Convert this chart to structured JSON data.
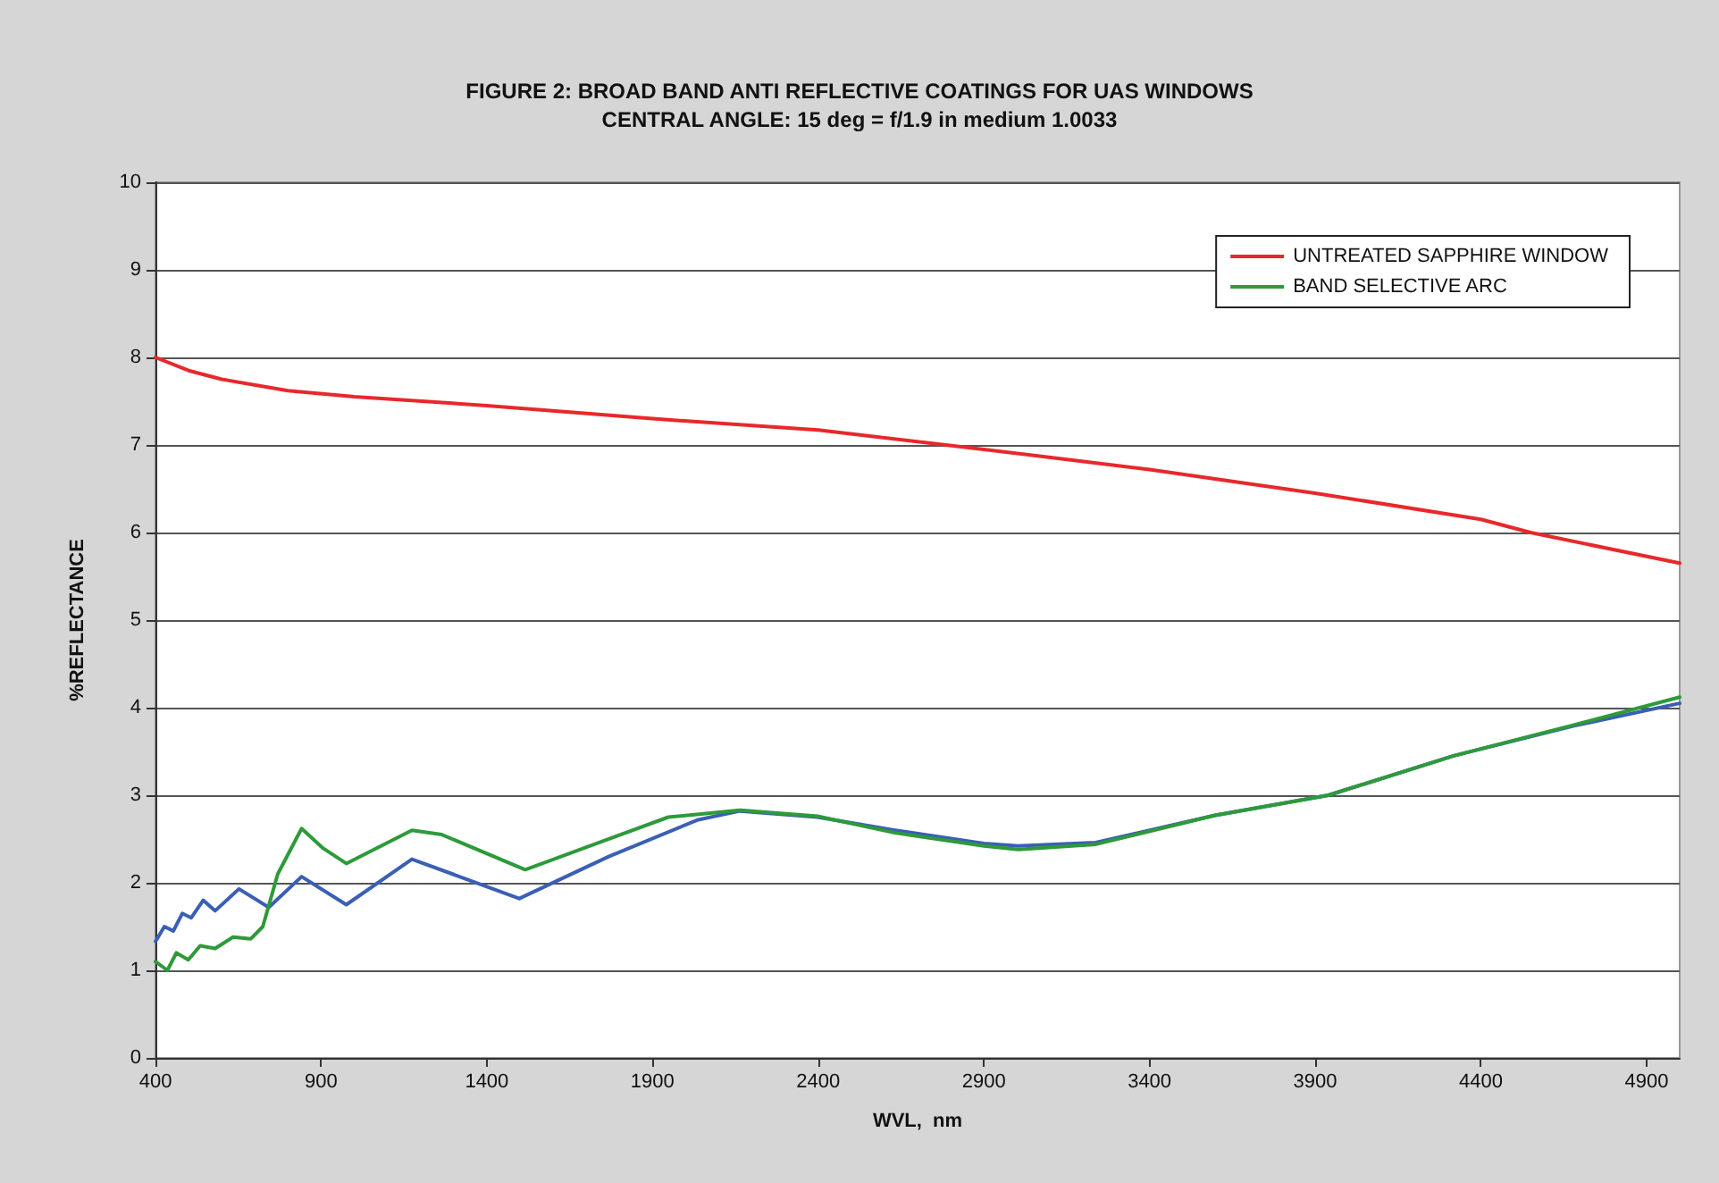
{
  "chart_data": {
    "type": "line",
    "title": "FIGURE 2: BROAD BAND ANTI REFLECTIVE COATINGS FOR UAS WINDOWS",
    "subtitle": "CENTRAL ANGLE: 15 deg = f/1.9 in medium 1.0033",
    "xlabel": "WVL,  nm",
    "ylabel": "%REFLECTANCE",
    "xlim": [
      400,
      5000
    ],
    "xticks": [
      400,
      900,
      1400,
      1900,
      2400,
      2900,
      3400,
      3900,
      4400,
      4900
    ],
    "ylim": [
      0,
      10
    ],
    "yticks": [
      0,
      1,
      2,
      3,
      4,
      5,
      6,
      7,
      8,
      9,
      10
    ],
    "grid": "y",
    "legend": "top right",
    "marker": "none",
    "line_style": "solid",
    "series": [
      {
        "color": "#3a5fb5",
        "x": [
          400,
          427,
          454,
          481,
          508,
          544,
          580,
          652,
          742,
          841,
          976,
          1174,
          1498,
          1768,
          2038,
          2164,
          2398,
          2632,
          2900,
          3004,
          3238,
          3598,
          3940,
          4318,
          4678,
          5000
        ],
        "values": [
          1.33,
          1.5,
          1.45,
          1.65,
          1.6,
          1.8,
          1.68,
          1.93,
          1.72,
          2.07,
          1.75,
          2.27,
          1.82,
          2.3,
          2.72,
          2.82,
          2.75,
          2.6,
          2.45,
          2.42,
          2.46,
          2.77,
          3.0,
          3.45,
          3.79,
          4.05
        ]
      },
      {
        "name": "UNTREATED SAPPHIRE WINDOW",
        "color": "#e8282b",
        "x": [
          400,
          500,
          600,
          800,
          1000,
          1400,
          1900,
          2400,
          2900,
          3400,
          3900,
          4400,
          4550,
          5000
        ],
        "values": [
          8.0,
          7.85,
          7.75,
          7.62,
          7.55,
          7.45,
          7.3,
          7.17,
          6.95,
          6.72,
          6.45,
          6.15,
          6.0,
          5.65
        ]
      },
      {
        "name": "BAND SELECTIVE ARC",
        "color": "#2e9a3a",
        "x": [
          400,
          436,
          463,
          499,
          535,
          580,
          634,
          688,
          724,
          769,
          841,
          904,
          976,
          1174,
          1264,
          1516,
          1732,
          1948,
          2164,
          2398,
          2632,
          2900,
          3004,
          3238,
          3598,
          3940,
          4318,
          4678,
          5000
        ],
        "values": [
          1.1,
          1.0,
          1.2,
          1.12,
          1.28,
          1.25,
          1.38,
          1.36,
          1.5,
          2.1,
          2.62,
          2.4,
          2.22,
          2.6,
          2.55,
          2.15,
          2.45,
          2.75,
          2.83,
          2.76,
          2.57,
          2.42,
          2.38,
          2.44,
          2.77,
          3.0,
          3.45,
          3.8,
          4.12
        ]
      }
    ]
  }
}
